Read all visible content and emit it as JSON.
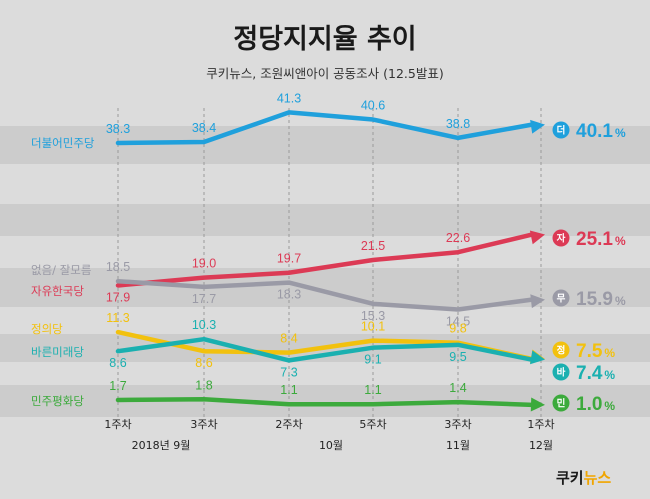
{
  "header": {
    "title": "정당지지율 추이",
    "subtitle": "쿠키뉴스, 조원씨앤아이 공동조사 (12.5발표)"
  },
  "logo": {
    "text": "쿠키뉴스",
    "colors": [
      "#1a1a1a",
      "#f0a500"
    ]
  },
  "chart_data": {
    "type": "line",
    "x": [
      "1주차",
      "3주차",
      "2주차",
      "5주차",
      "3주차",
      "1주차"
    ],
    "x_groups": [
      {
        "label": "2018년 9월",
        "span": [
          0,
          1
        ]
      },
      {
        "label": "10월",
        "span": [
          2,
          3
        ]
      },
      {
        "label": "11월",
        "span": [
          4,
          4
        ]
      },
      {
        "label": "12월",
        "span": [
          5,
          5
        ]
      }
    ],
    "value_unit": "%",
    "series": [
      {
        "name": "더불어민주당",
        "badge": "더",
        "color": "#1fa0dc",
        "values": [
          38.3,
          38.4,
          41.3,
          40.6,
          38.8,
          40.1
        ],
        "labels": [
          "38.3",
          "38.4",
          "41.3",
          "40.6",
          "38.8",
          "40.1"
        ]
      },
      {
        "name": "자유한국당",
        "badge": "자",
        "color": "#dc3a55",
        "values": [
          17.9,
          19.0,
          19.7,
          21.5,
          22.6,
          25.1
        ],
        "labels": [
          "17.9",
          "19.0",
          "19.7",
          "21.5",
          "22.6",
          "25.1"
        ]
      },
      {
        "name": "없음/ 잘모름",
        "badge": "무",
        "color": "#9a9aa6",
        "values": [
          18.5,
          17.7,
          18.3,
          15.3,
          14.5,
          15.9
        ],
        "labels": [
          "18.5",
          "17.7",
          "18.3",
          "15.3",
          "14.5",
          "15.9"
        ]
      },
      {
        "name": "정의당",
        "badge": "정",
        "color": "#f2c10e",
        "values": [
          11.3,
          8.6,
          8.4,
          10.1,
          9.8,
          7.5
        ],
        "labels": [
          "11.3",
          "8.6",
          "8.4",
          "10.1",
          "9.8",
          "7.5"
        ]
      },
      {
        "name": "바른미래당",
        "badge": "바",
        "color": "#1ab0b0",
        "values": [
          8.6,
          10.3,
          7.3,
          9.1,
          9.5,
          7.4
        ],
        "labels": [
          "8.6",
          "10.3",
          "7.3",
          "9.1",
          "9.5",
          "7.4"
        ]
      },
      {
        "name": "민주평화당",
        "badge": "민",
        "color": "#3caa3c",
        "values": [
          1.7,
          1.8,
          1.1,
          1.1,
          1.4,
          1.0
        ],
        "labels": [
          "1.7",
          "1.8",
          "1.1",
          "1.1",
          "1.4",
          "1.0"
        ]
      }
    ]
  }
}
